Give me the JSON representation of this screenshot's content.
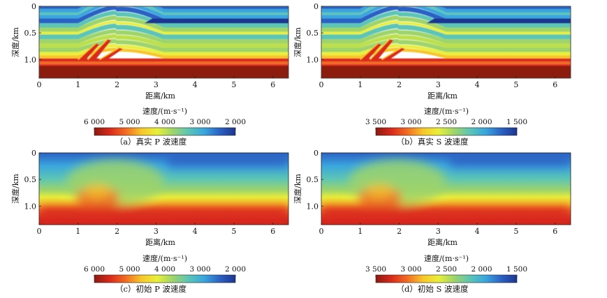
{
  "chart_data": [
    {
      "id": "a",
      "type": "heatmap",
      "field": "true-layered",
      "caption": "（a）真实 P 波速度",
      "xlabel": "距离/km",
      "ylabel": "深度/km",
      "xticks": [
        "0",
        "1",
        "2",
        "3",
        "4",
        "5",
        "6"
      ],
      "yticks": [
        "0",
        "0.5",
        "1.0"
      ],
      "xlim": [
        0,
        6.4
      ],
      "ylim": [
        0,
        1.35
      ],
      "colorbar_title": "速度/(m·s⁻¹)",
      "colorbar_ticks": [
        "6 000",
        "5 000",
        "4 000",
        "3 000",
        "2 000"
      ],
      "colorbar_values": [
        6000,
        5000,
        4000,
        3000,
        2000
      ]
    },
    {
      "id": "b",
      "type": "heatmap",
      "field": "true-layered",
      "caption": "（b）真实 S 波速度",
      "xlabel": "距离/km",
      "ylabel": "深度/km",
      "xticks": [
        "0",
        "1",
        "2",
        "3",
        "4",
        "5",
        "6"
      ],
      "yticks": [
        "0",
        "0.5",
        "1.0"
      ],
      "xlim": [
        0,
        6.4
      ],
      "ylim": [
        0,
        1.35
      ],
      "colorbar_title": "速度/(m·s⁻¹)",
      "colorbar_ticks": [
        "3 500",
        "3 000",
        "2 500",
        "2 000",
        "1 500"
      ],
      "colorbar_values": [
        3500,
        3000,
        2500,
        2000,
        1500
      ]
    },
    {
      "id": "c",
      "type": "heatmap",
      "field": "smooth-initial",
      "caption": "（c）初始 P 波速度",
      "xlabel": "距离/km",
      "ylabel": "深度/km",
      "xticks": [
        "0",
        "1",
        "2",
        "3",
        "4",
        "5",
        "6"
      ],
      "yticks": [
        "0",
        "0.5",
        "1.0"
      ],
      "xlim": [
        0,
        6.4
      ],
      "ylim": [
        0,
        1.35
      ],
      "colorbar_title": "速度/(m·s⁻¹)",
      "colorbar_ticks": [
        "6 000",
        "5 000",
        "4 000",
        "3 000",
        "2 000"
      ],
      "colorbar_values": [
        6000,
        5000,
        4000,
        3000,
        2000
      ]
    },
    {
      "id": "d",
      "type": "heatmap",
      "field": "smooth-initial",
      "caption": "（d）初始 S 波速度",
      "xlabel": "距离/km",
      "ylabel": "深度/km",
      "xticks": [
        "0",
        "1",
        "2",
        "3",
        "4",
        "5",
        "6"
      ],
      "yticks": [
        "0",
        "0.5",
        "1.0"
      ],
      "xlim": [
        0,
        6.4
      ],
      "ylim": [
        0,
        1.35
      ],
      "colorbar_title": "速度/(m·s⁻¹)",
      "colorbar_ticks": [
        "3 500",
        "3 000",
        "2 500",
        "2 000",
        "1 500"
      ],
      "colorbar_values": [
        3500,
        3000,
        2500,
        2000,
        1500
      ]
    }
  ],
  "colors": {
    "colormap": [
      "#8c1a10",
      "#d92a1c",
      "#f26b22",
      "#f7c62a",
      "#e9ef3a",
      "#9ed46a",
      "#5cc5b5",
      "#3aa6dd",
      "#2b62c4",
      "#1d3590"
    ]
  }
}
